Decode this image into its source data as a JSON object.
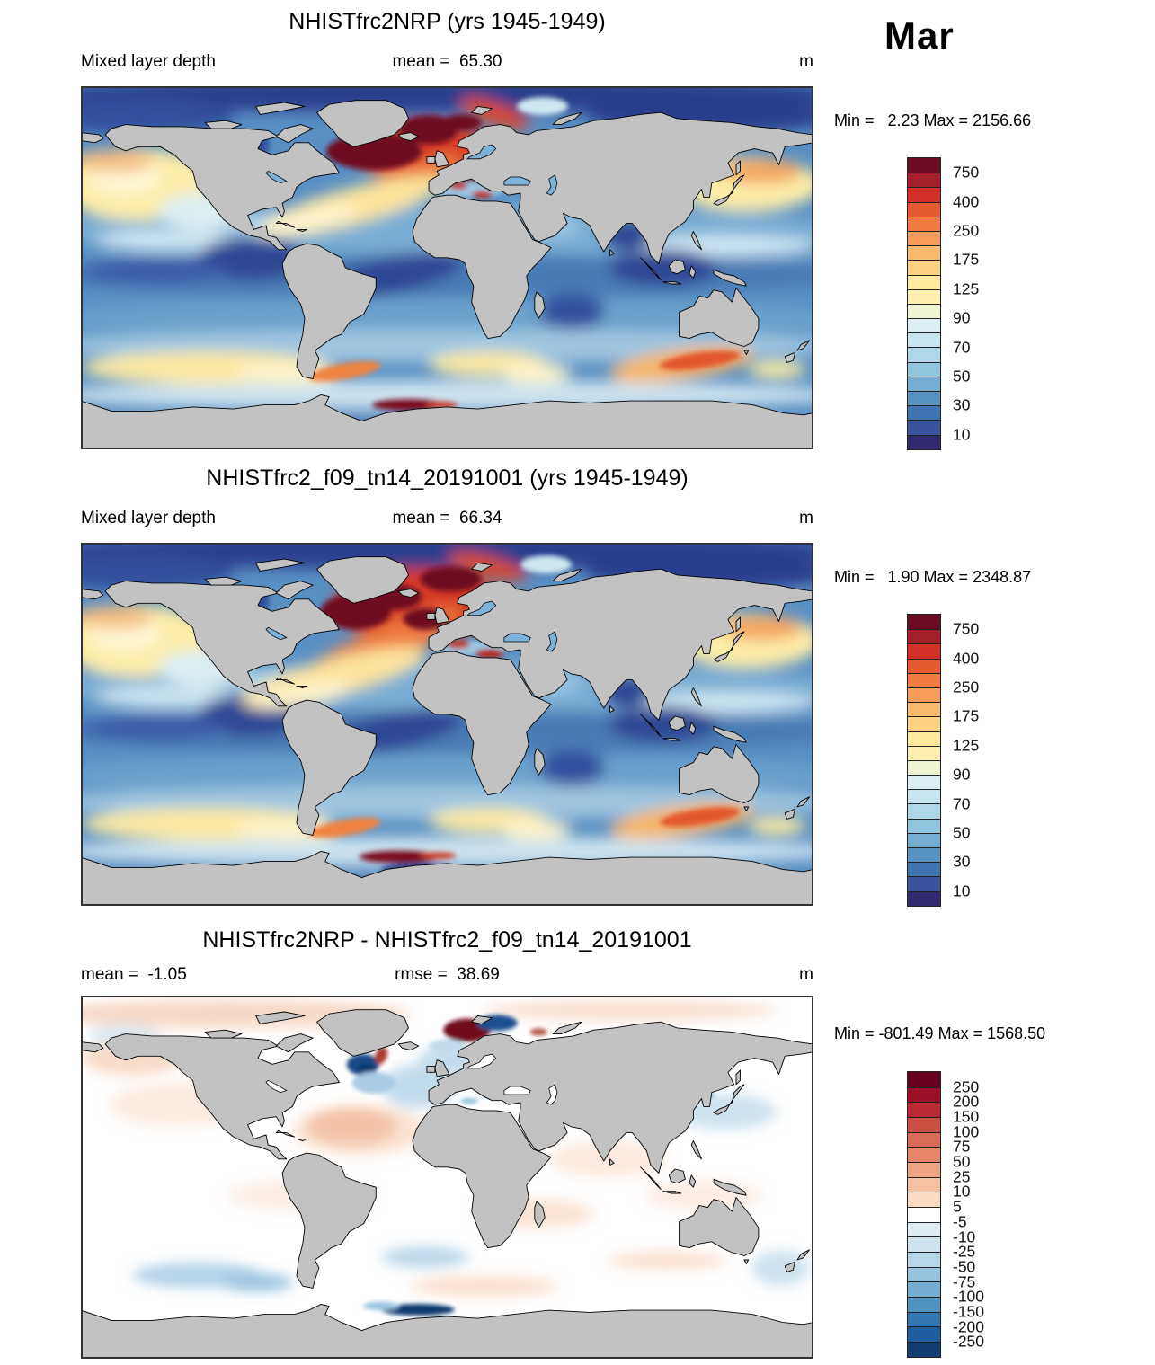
{
  "header": {
    "month": "Mar"
  },
  "panels": [
    {
      "title": "NHISTfrc2NRP (yrs 1945-1949)",
      "row_left": "Mixed layer depth",
      "row_center": "mean =  65.30",
      "row_right": "m",
      "minmax": "Min =   2.23 Max = 2156.66"
    },
    {
      "title": "NHISTfrc2_f09_tn14_20191001 (yrs 1945-1949)",
      "row_left": "Mixed layer depth",
      "row_center": "mean =  66.34",
      "row_right": "m",
      "minmax": "Min =   1.90 Max = 2348.87"
    },
    {
      "title": "NHISTfrc2NRP - NHISTfrc2_f09_tn14_20191001",
      "row_left": "mean =  -1.05",
      "row_center": "rmse =  38.69",
      "row_right": "m",
      "minmax": "Min = -801.49 Max = 1568.50"
    }
  ],
  "colorbars": {
    "main": {
      "labels": [
        "750",
        "400",
        "250",
        "175",
        "125",
        "90",
        "70",
        "50",
        "30",
        "10"
      ],
      "colors": [
        "#6a0b23",
        "#a6202b",
        "#d33127",
        "#e55a31",
        "#f07c41",
        "#f69c5b",
        "#fab96e",
        "#fdd383",
        "#fee99c",
        "#fdf0ae",
        "#eef3d4",
        "#dcedf3",
        "#c8e4ee",
        "#b0d7e7",
        "#92c5de",
        "#74aed3",
        "#5891c3",
        "#3f74b3",
        "#3a549f",
        "#322a70"
      ]
    },
    "diff": {
      "labels": [
        "250",
        "200",
        "150",
        "100",
        "75",
        "50",
        "25",
        "10",
        "5",
        "-5",
        "-10",
        "-25",
        "-50",
        "-75",
        "-100",
        "-150",
        "-200",
        "-250"
      ],
      "colors": [
        "#67001f",
        "#9c102a",
        "#bb2a33",
        "#cc5145",
        "#d96a56",
        "#e68568",
        "#f0a482",
        "#f7c0a0",
        "#fbdac4",
        "#ffffff",
        "#dfebf3",
        "#cfe2ee",
        "#b7d6e8",
        "#97c4de",
        "#73add2",
        "#4f93c3",
        "#3377b2",
        "#1f5ea0",
        "#123e73"
      ]
    }
  },
  "chart_data": [
    {
      "type": "heatmap",
      "projection": "global latitude-longitude map",
      "title": "NHISTfrc2NRP (yrs 1945-1949)",
      "variable": "Mixed layer depth",
      "units": "m",
      "month": "Mar",
      "stats": {
        "mean": 65.3,
        "min": 2.23,
        "max": 2156.66
      },
      "colorbar_ticks": [
        750,
        400,
        250,
        175,
        125,
        90,
        70,
        50,
        30,
        10
      ]
    },
    {
      "type": "heatmap",
      "projection": "global latitude-longitude map",
      "title": "NHISTfrc2_f09_tn14_20191001 (yrs 1945-1949)",
      "variable": "Mixed layer depth",
      "units": "m",
      "month": "Mar",
      "stats": {
        "mean": 66.34,
        "min": 1.9,
        "max": 2348.87
      },
      "colorbar_ticks": [
        750,
        400,
        250,
        175,
        125,
        90,
        70,
        50,
        30,
        10
      ]
    },
    {
      "type": "heatmap",
      "projection": "global latitude-longitude map",
      "title": "NHISTfrc2NRP - NHISTfrc2_f09_tn14_20191001",
      "units": "m",
      "month": "Mar",
      "stats": {
        "mean": -1.05,
        "rmse": 38.69,
        "min": -801.49,
        "max": 1568.5
      },
      "colorbar_ticks": [
        250,
        200,
        150,
        100,
        75,
        50,
        25,
        10,
        5,
        -5,
        -10,
        -25,
        -50,
        -75,
        -100,
        -150,
        -200,
        -250
      ]
    }
  ]
}
